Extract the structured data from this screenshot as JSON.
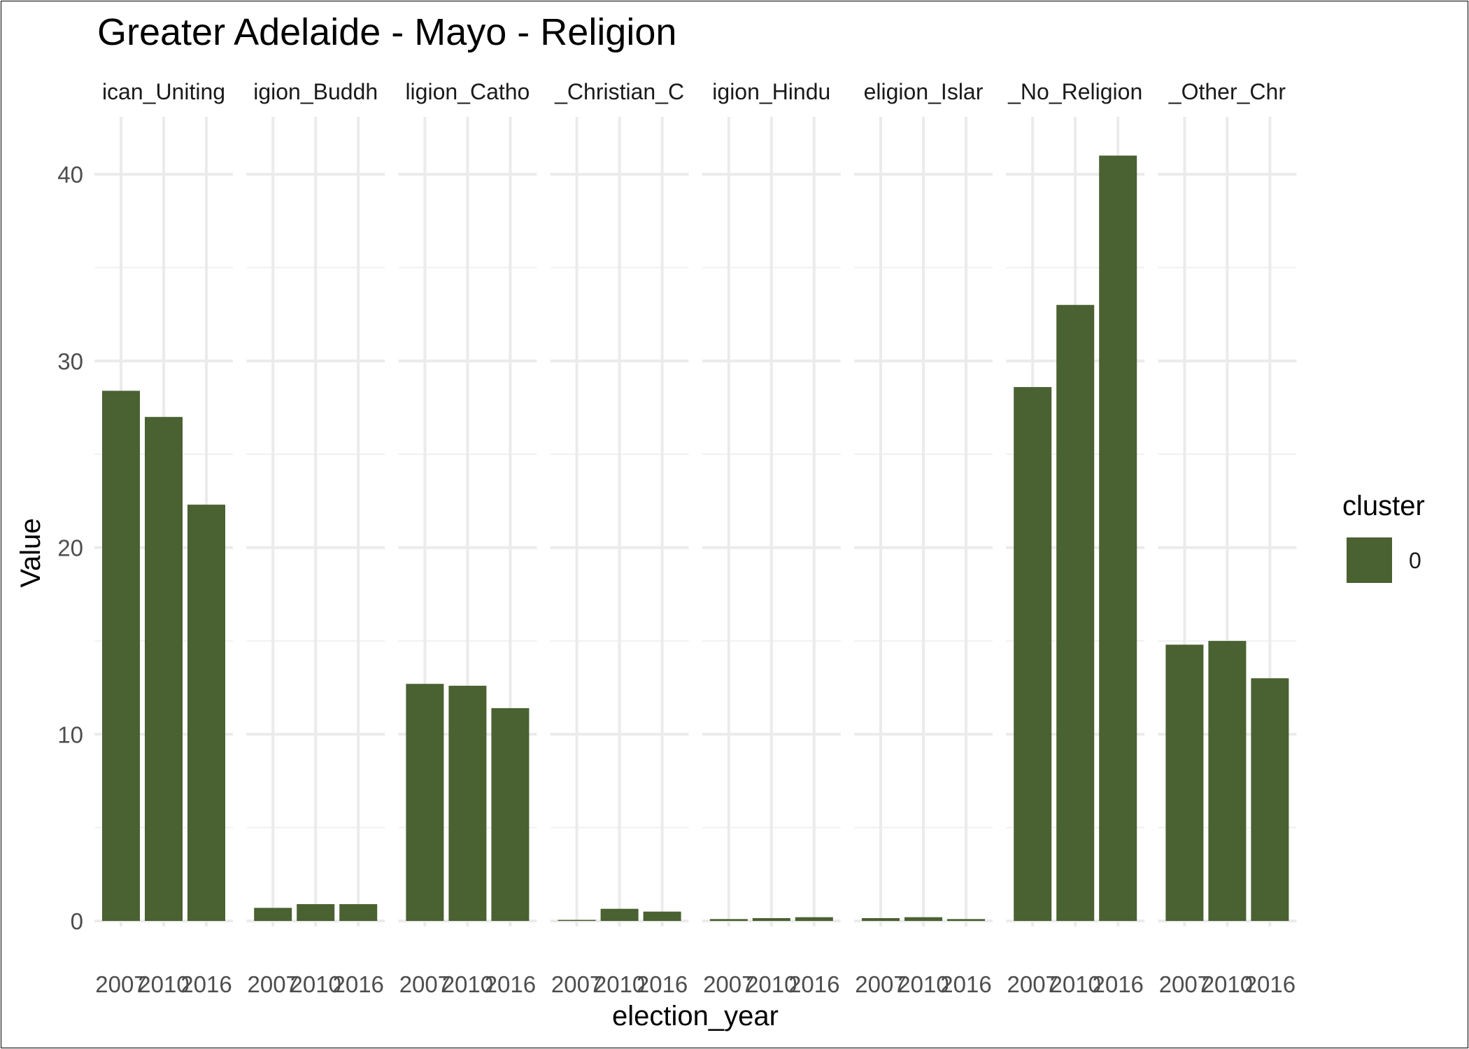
{
  "chart_data": {
    "type": "bar",
    "title": "Greater Adelaide - Mayo - Religion",
    "xlabel": "election_year",
    "ylabel": "Value",
    "ylim": [
      0,
      43
    ],
    "y_ticks": [
      0,
      10,
      20,
      30,
      40
    ],
    "grid": true,
    "legend": {
      "title": "cluster",
      "position": "right",
      "entries": [
        {
          "label": "0",
          "color": "#4a6131"
        }
      ]
    },
    "bar_color": "#4a6131",
    "categories": [
      "2007",
      "2010",
      "2016"
    ],
    "facets": [
      {
        "label": "ican_Uniting",
        "values": [
          28.4,
          27.0,
          22.3
        ]
      },
      {
        "label": "igion_Buddh",
        "values": [
          0.7,
          0.9,
          0.9
        ]
      },
      {
        "label": "ligion_Catho",
        "values": [
          12.7,
          12.6,
          11.4
        ]
      },
      {
        "label": "_Christian_C",
        "values": [
          0.05,
          0.65,
          0.5
        ]
      },
      {
        "label": "igion_Hindu",
        "values": [
          0.1,
          0.15,
          0.2
        ]
      },
      {
        "label": "eligion_Islar",
        "values": [
          0.15,
          0.2,
          0.1
        ]
      },
      {
        "label": "_No_Religion",
        "values": [
          28.6,
          33.0,
          41.0
        ]
      },
      {
        "label": "_Other_Chr",
        "values": [
          14.8,
          15.0,
          13.0
        ]
      }
    ]
  }
}
